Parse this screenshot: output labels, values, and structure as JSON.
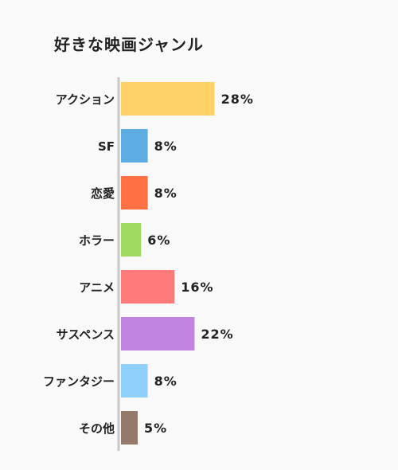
{
  "chart_data": {
    "type": "bar",
    "orientation": "horizontal",
    "title": "好きな映画ジャンル",
    "categories": [
      "アクション",
      "SF",
      "恋愛",
      "ホラー",
      "アニメ",
      "サスペンス",
      "ファンタジー",
      "その他"
    ],
    "values": [
      28,
      8,
      8,
      6,
      16,
      22,
      8,
      5
    ],
    "value_labels": [
      "28%",
      "8%",
      "8%",
      "6%",
      "16%",
      "22%",
      "8%",
      "5%"
    ],
    "colors": [
      "#FFD166",
      "#5DADE2",
      "#FF7043",
      "#A0D95F",
      "#FF7B7B",
      "#C084E0",
      "#90D0FC",
      "#937A6A"
    ],
    "xlabel": "",
    "ylabel": "",
    "grid": false,
    "legend": "none"
  }
}
